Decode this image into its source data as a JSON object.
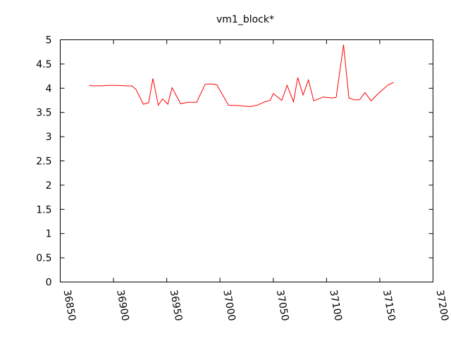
{
  "chart_data": {
    "type": "line",
    "title": "vm1_block*",
    "xlabel": "",
    "ylabel": "",
    "xlim": [
      36850,
      37200
    ],
    "ylim": [
      0,
      5
    ],
    "xticks": [
      36850,
      36900,
      36950,
      37000,
      37050,
      37100,
      37150,
      37200
    ],
    "yticks": [
      0,
      0.5,
      1,
      1.5,
      2,
      2.5,
      3,
      3.5,
      4,
      4.5,
      5
    ],
    "grid": false,
    "legend": "none",
    "x_tick_rotation": "vertical",
    "series": [
      {
        "color": "#ff0000",
        "x": [
          36877,
          36881,
          36889,
          36895,
          36903,
          36912,
          36917,
          36921,
          36928,
          36933,
          36937,
          36942,
          36946,
          36951,
          36955,
          36963,
          36970,
          36978,
          36986,
          36991,
          36997,
          37008,
          37019,
          37028,
          37035,
          37042,
          37047,
          37050,
          37058,
          37063,
          37069,
          37073,
          37078,
          37083,
          37088,
          37097,
          37105,
          37109,
          37116,
          37121,
          37126,
          37131,
          37136,
          37142,
          37148,
          37158,
          37163
        ],
        "y": [
          4.06,
          4.05,
          4.05,
          4.06,
          4.06,
          4.05,
          4.05,
          3.98,
          3.67,
          3.7,
          4.2,
          3.65,
          3.78,
          3.67,
          4.01,
          3.68,
          3.71,
          3.71,
          4.08,
          4.09,
          4.07,
          3.65,
          3.64,
          3.62,
          3.65,
          3.72,
          3.75,
          3.89,
          3.75,
          4.06,
          3.72,
          4.22,
          3.86,
          4.17,
          3.74,
          3.82,
          3.8,
          3.81,
          4.9,
          3.8,
          3.76,
          3.76,
          3.91,
          3.74,
          3.88,
          4.07,
          4.12
        ]
      }
    ]
  }
}
